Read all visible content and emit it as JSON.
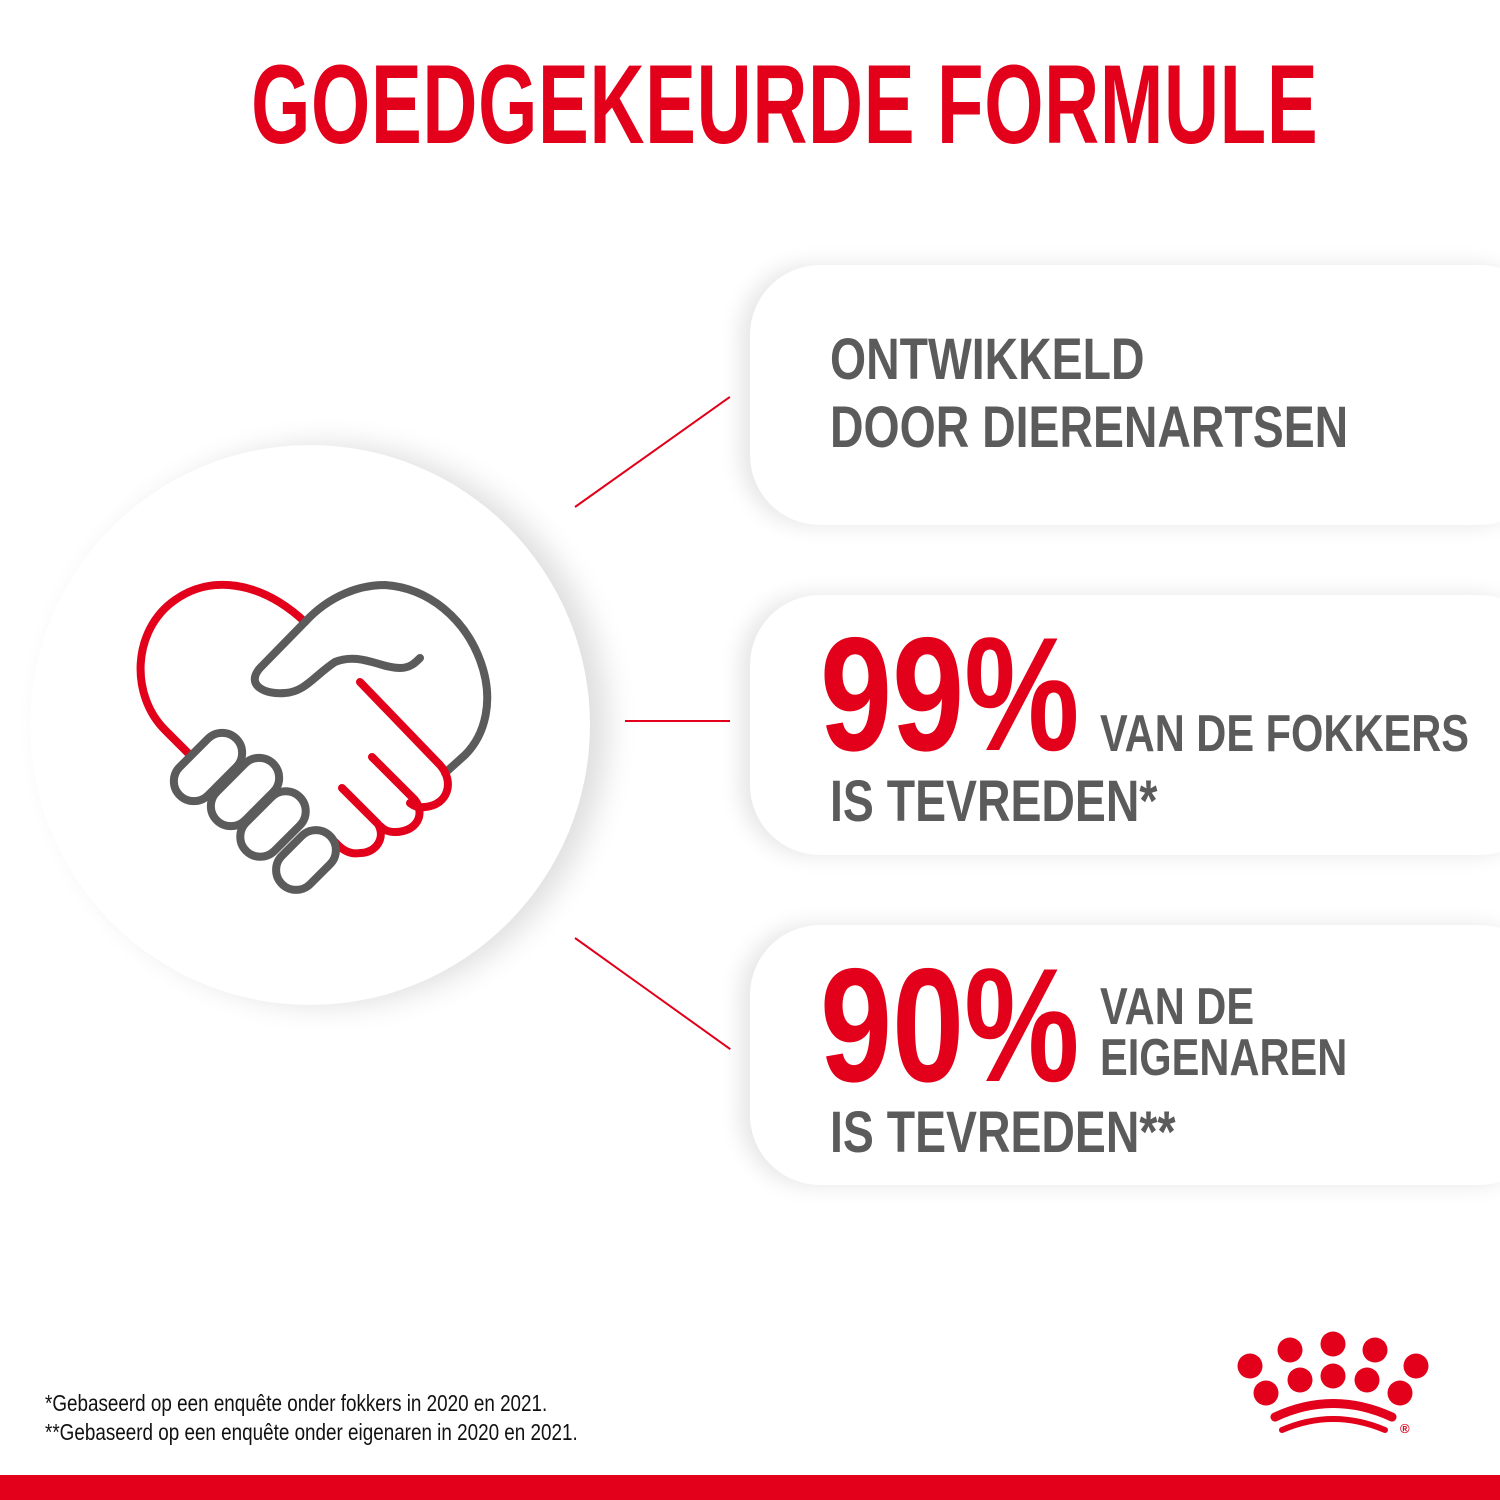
{
  "title": "GOEDGEKEURDE FORMULE",
  "icon": "handshake-heart-icon",
  "items": [
    {
      "line1": "ONTWIKKELD",
      "line2": "DOOR DIERENARTSEN"
    },
    {
      "percent": "99%",
      "label": "VAN DE FOKKERS",
      "line2": "IS TEVREDEN*"
    },
    {
      "percent": "90%",
      "label1": "VAN DE",
      "label2": "EIGENAREN",
      "line2": "IS TEVREDEN**"
    }
  ],
  "footnotes": [
    "*Gebaseerd op een enquête onder fokkers in 2020 en 2021.",
    "**Gebaseerd op een enquête onder eigenaren in 2020 en 2021."
  ],
  "logo": "royal-canin-crown-logo",
  "colors": {
    "accent": "#e2001a",
    "text": "#5b5b5b"
  }
}
